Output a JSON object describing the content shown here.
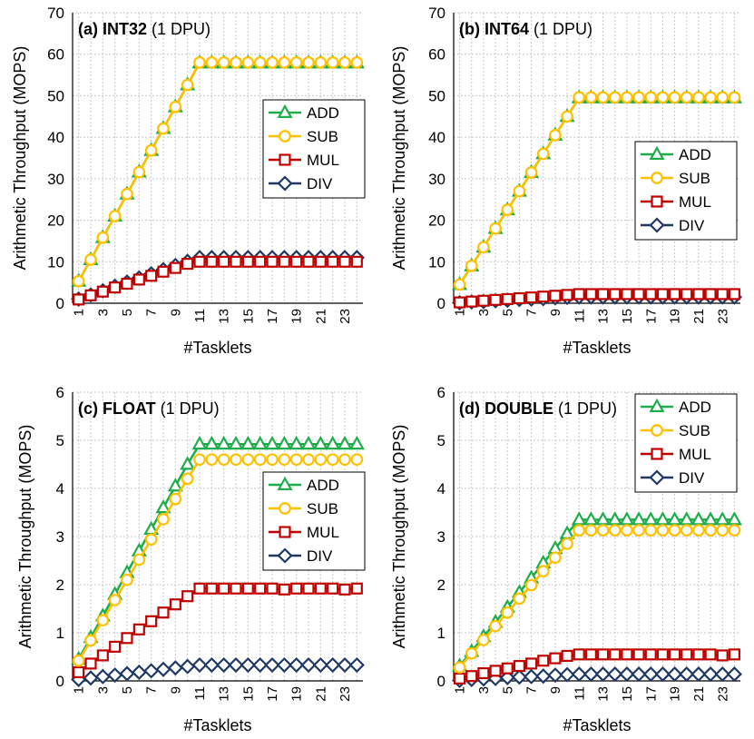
{
  "chart_data": [
    {
      "type": "line",
      "title_bold": "(a) INT32",
      "title_rest": "(1 DPU)",
      "xlabel": "#Tasklets",
      "ylabel": "Arithmetic Throughput (MOPS)",
      "ylim": [
        0,
        70
      ],
      "yticks": [
        0,
        10,
        20,
        30,
        40,
        50,
        60,
        70
      ],
      "grid": true,
      "legend_position": "center-right",
      "categories": [
        1,
        2,
        3,
        4,
        5,
        6,
        7,
        8,
        9,
        10,
        11,
        12,
        13,
        14,
        15,
        16,
        17,
        18,
        19,
        20,
        21,
        22,
        23,
        24
      ],
      "x_tick_labels": [
        "1",
        "3",
        "5",
        "7",
        "9",
        "11",
        "13",
        "15",
        "17",
        "19",
        "21",
        "23"
      ],
      "series": [
        {
          "name": "ADD",
          "values": [
            5.3,
            10.5,
            15.8,
            21.0,
            26.3,
            31.6,
            36.8,
            42.1,
            47.3,
            52.6,
            57.9,
            57.9,
            57.9,
            57.9,
            57.9,
            57.9,
            57.9,
            57.9,
            57.9,
            57.9,
            57.9,
            57.9,
            57.9,
            57.9
          ]
        },
        {
          "name": "SUB",
          "values": [
            5.3,
            10.5,
            15.8,
            21.0,
            26.3,
            31.6,
            36.8,
            42.1,
            47.3,
            52.6,
            58.0,
            58.0,
            58.0,
            58.0,
            58.0,
            58.0,
            58.0,
            58.0,
            58.0,
            58.0,
            58.0,
            58.0,
            58.0,
            58.0
          ]
        },
        {
          "name": "MUL",
          "values": [
            0.9,
            1.9,
            2.8,
            3.8,
            4.7,
            5.7,
            6.6,
            7.6,
            8.5,
            9.5,
            10.0,
            10.0,
            10.0,
            10.0,
            10.0,
            10.0,
            10.0,
            10.0,
            10.0,
            10.0,
            10.0,
            10.0,
            10.0,
            10.0
          ]
        },
        {
          "name": "DIV",
          "values": [
            1.0,
            2.0,
            3.0,
            4.1,
            5.1,
            6.1,
            7.1,
            8.1,
            9.1,
            10.1,
            11.0,
            11.0,
            11.0,
            11.0,
            11.0,
            11.0,
            11.0,
            11.0,
            11.0,
            11.0,
            11.0,
            11.0,
            11.0,
            11.0
          ]
        }
      ]
    },
    {
      "type": "line",
      "title_bold": "(b) INT64",
      "title_rest": "(1 DPU)",
      "xlabel": "#Tasklets",
      "ylabel": "Arithmetic Throughput (MOPS)",
      "ylim": [
        0,
        70
      ],
      "yticks": [
        0,
        10,
        20,
        30,
        40,
        50,
        60,
        70
      ],
      "grid": true,
      "legend_position": "center-right",
      "categories": [
        1,
        2,
        3,
        4,
        5,
        6,
        7,
        8,
        9,
        10,
        11,
        12,
        13,
        14,
        15,
        16,
        17,
        18,
        19,
        20,
        21,
        22,
        23,
        24
      ],
      "x_tick_labels": [
        "1",
        "3",
        "5",
        "7",
        "9",
        "11",
        "13",
        "15",
        "17",
        "19",
        "21",
        "23"
      ],
      "series": [
        {
          "name": "ADD",
          "values": [
            4.5,
            9.0,
            13.5,
            18.0,
            22.5,
            27.0,
            31.5,
            36.0,
            40.5,
            45.0,
            49.5,
            49.5,
            49.5,
            49.5,
            49.5,
            49.5,
            49.5,
            49.5,
            49.5,
            49.5,
            49.5,
            49.5,
            49.5,
            49.5
          ]
        },
        {
          "name": "SUB",
          "values": [
            4.5,
            9.0,
            13.5,
            18.0,
            22.5,
            27.0,
            31.5,
            36.0,
            40.5,
            45.0,
            49.6,
            49.6,
            49.6,
            49.6,
            49.6,
            49.6,
            49.6,
            49.6,
            49.6,
            49.6,
            49.6,
            49.6,
            49.6,
            49.6
          ]
        },
        {
          "name": "MUL",
          "values": [
            0.2,
            0.4,
            0.6,
            0.8,
            1.0,
            1.2,
            1.4,
            1.6,
            1.8,
            2.0,
            2.2,
            2.2,
            2.2,
            2.2,
            2.2,
            2.2,
            2.2,
            2.2,
            2.2,
            2.2,
            2.2,
            2.2,
            2.2,
            2.2
          ]
        },
        {
          "name": "DIV",
          "values": [
            0.1,
            0.3,
            0.4,
            0.6,
            0.7,
            0.9,
            1.0,
            1.1,
            1.3,
            1.4,
            1.5,
            1.5,
            1.5,
            1.5,
            1.5,
            1.5,
            1.5,
            1.5,
            1.5,
            1.5,
            1.5,
            1.5,
            1.5,
            1.5
          ]
        }
      ]
    },
    {
      "type": "line",
      "title_bold": "(c) FLOAT",
      "title_rest": "(1 DPU)",
      "xlabel": "#Tasklets",
      "ylabel": "Arithmetic Throughput (MOPS)",
      "ylim": [
        0,
        6
      ],
      "yticks": [
        0,
        1,
        2,
        3,
        4,
        5,
        6
      ],
      "grid": true,
      "legend_position": "center-right",
      "categories": [
        1,
        2,
        3,
        4,
        5,
        6,
        7,
        8,
        9,
        10,
        11,
        12,
        13,
        14,
        15,
        16,
        17,
        18,
        19,
        20,
        21,
        22,
        23,
        24
      ],
      "x_tick_labels": [
        "1",
        "3",
        "5",
        "7",
        "9",
        "11",
        "13",
        "15",
        "17",
        "19",
        "21",
        "23"
      ],
      "series": [
        {
          "name": "ADD",
          "values": [
            0.45,
            0.9,
            1.35,
            1.8,
            2.25,
            2.7,
            3.15,
            3.6,
            4.05,
            4.5,
            4.92,
            4.92,
            4.92,
            4.92,
            4.92,
            4.92,
            4.92,
            4.92,
            4.92,
            4.92,
            4.92,
            4.92,
            4.92,
            4.92
          ]
        },
        {
          "name": "SUB",
          "values": [
            0.42,
            0.84,
            1.26,
            1.68,
            2.1,
            2.52,
            2.94,
            3.36,
            3.78,
            4.2,
            4.6,
            4.6,
            4.6,
            4.6,
            4.6,
            4.6,
            4.6,
            4.6,
            4.6,
            4.6,
            4.6,
            4.6,
            4.6,
            4.6
          ]
        },
        {
          "name": "MUL",
          "values": [
            0.18,
            0.36,
            0.53,
            0.71,
            0.89,
            1.07,
            1.24,
            1.42,
            1.59,
            1.76,
            1.92,
            1.92,
            1.92,
            1.92,
            1.92,
            1.92,
            1.92,
            1.9,
            1.92,
            1.92,
            1.92,
            1.92,
            1.9,
            1.92
          ]
        },
        {
          "name": "DIV",
          "values": [
            0.03,
            0.06,
            0.09,
            0.12,
            0.15,
            0.18,
            0.21,
            0.24,
            0.27,
            0.3,
            0.33,
            0.33,
            0.33,
            0.33,
            0.33,
            0.33,
            0.33,
            0.33,
            0.33,
            0.33,
            0.33,
            0.33,
            0.33,
            0.33
          ]
        }
      ]
    },
    {
      "type": "line",
      "title_bold": "(d) DOUBLE",
      "title_rest": "(1 DPU)",
      "xlabel": "#Tasklets",
      "ylabel": "Arithmetic Throughput (MOPS)",
      "ylim": [
        0,
        6
      ],
      "yticks": [
        0,
        1,
        2,
        3,
        4,
        5,
        6
      ],
      "grid": true,
      "legend_position": "top-right",
      "categories": [
        1,
        2,
        3,
        4,
        5,
        6,
        7,
        8,
        9,
        10,
        11,
        12,
        13,
        14,
        15,
        16,
        17,
        18,
        19,
        20,
        21,
        22,
        23,
        24
      ],
      "x_tick_labels": [
        "1",
        "3",
        "5",
        "7",
        "9",
        "11",
        "13",
        "15",
        "17",
        "19",
        "21",
        "23"
      ],
      "series": [
        {
          "name": "ADD",
          "values": [
            0.31,
            0.61,
            0.92,
            1.22,
            1.53,
            1.84,
            2.14,
            2.45,
            2.75,
            3.06,
            3.35,
            3.35,
            3.35,
            3.35,
            3.35,
            3.35,
            3.35,
            3.35,
            3.35,
            3.35,
            3.35,
            3.35,
            3.35,
            3.35
          ]
        },
        {
          "name": "SUB",
          "values": [
            0.28,
            0.57,
            0.85,
            1.14,
            1.42,
            1.71,
            1.99,
            2.28,
            2.56,
            2.85,
            3.13,
            3.13,
            3.13,
            3.13,
            3.13,
            3.13,
            3.13,
            3.13,
            3.13,
            3.13,
            3.13,
            3.13,
            3.13,
            3.13
          ]
        },
        {
          "name": "MUL",
          "values": [
            0.05,
            0.1,
            0.16,
            0.21,
            0.26,
            0.31,
            0.36,
            0.42,
            0.47,
            0.52,
            0.55,
            0.55,
            0.55,
            0.55,
            0.55,
            0.55,
            0.55,
            0.55,
            0.55,
            0.55,
            0.55,
            0.55,
            0.53,
            0.55
          ]
        },
        {
          "name": "DIV",
          "values": [
            0.01,
            0.03,
            0.04,
            0.05,
            0.07,
            0.08,
            0.09,
            0.1,
            0.12,
            0.13,
            0.14,
            0.14,
            0.14,
            0.14,
            0.14,
            0.14,
            0.14,
            0.14,
            0.14,
            0.14,
            0.14,
            0.14,
            0.14,
            0.14
          ]
        }
      ]
    }
  ],
  "style": {
    "series_colors": {
      "ADD": "#1fad4b",
      "SUB": "#ffc000",
      "MUL": "#c00000",
      "DIV": "#1f3864"
    },
    "marker_fill": "#ffffff",
    "grid_color": "#c8c8c8"
  }
}
